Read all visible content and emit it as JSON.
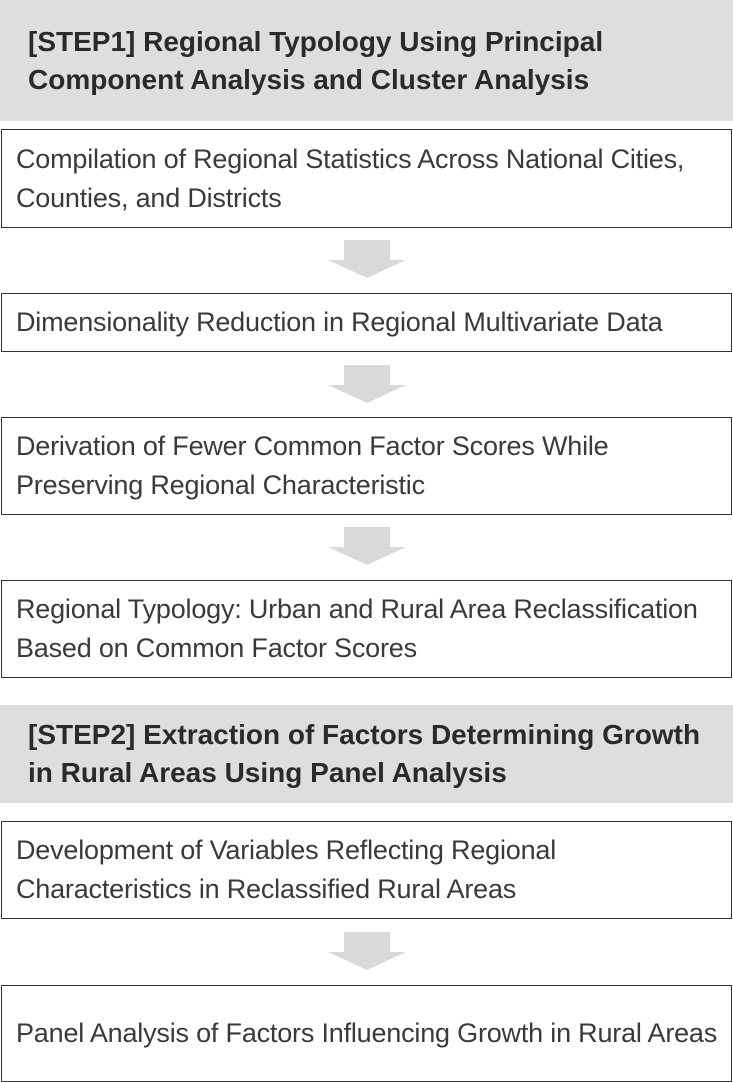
{
  "step1": {
    "title": "[STEP1] Regional Typology Using Principal Component Analysis and Cluster Analysis",
    "boxes": [
      "Compilation of Regional Statistics Across National Cities, Counties, and Districts",
      "Dimensionality Reduction in Regional Multivariate Data",
      "Derivation of Fewer Common Factor Scores While Preserving Regional Characteristic",
      "Regional Typology: Urban and Rural Area Reclassification Based on Common Factor Scores"
    ]
  },
  "step2": {
    "title": "[STEP2] Extraction of Factors Determining Growth in Rural Areas Using Panel Analysis",
    "boxes": [
      "Development of Variables Reflecting Regional Characteristics in Reclassified Rural Areas",
      "Panel Analysis of Factors Influencing Growth in Rural Areas"
    ]
  },
  "colors": {
    "header_bg": "#dedede",
    "arrow": "#d9d9d9",
    "border": "#333333"
  }
}
